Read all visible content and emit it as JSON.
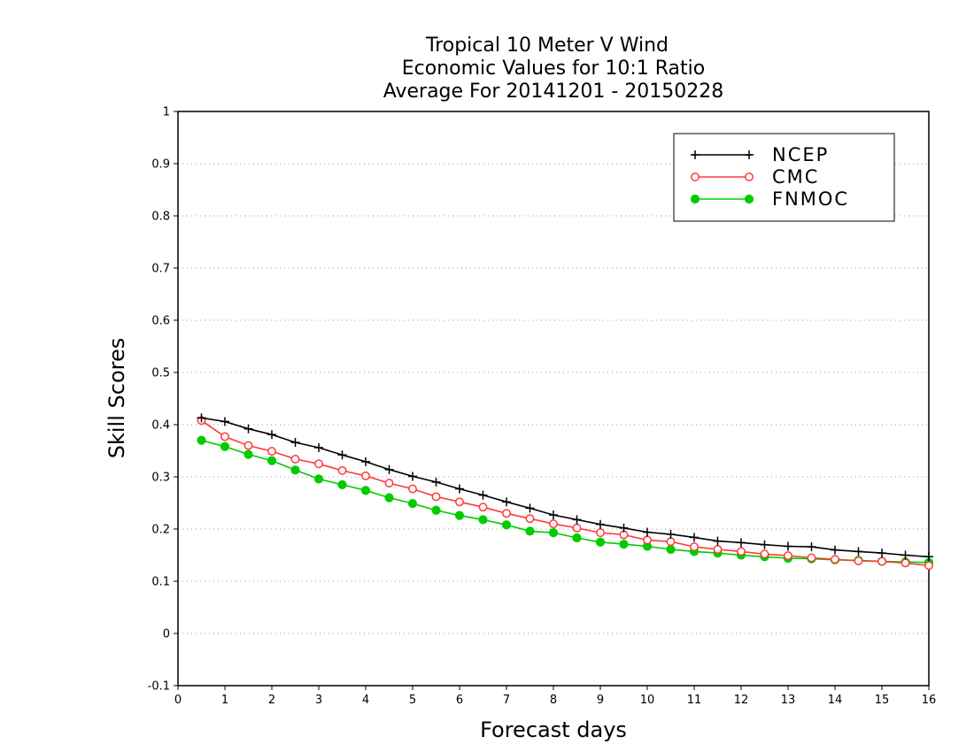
{
  "chart_data": {
    "type": "line",
    "title_lines": [
      "Tropical 10 Meter V Wind",
      "Economic Values for 10:1 Ratio",
      "Average For 20141201 - 20150228"
    ],
    "xlabel": "Forecast days",
    "ylabel": "Skill Scores",
    "xlim": [
      0,
      16
    ],
    "ylim": [
      -0.1,
      1
    ],
    "x_ticks": [
      0,
      1,
      2,
      3,
      4,
      5,
      6,
      7,
      8,
      9,
      10,
      11,
      12,
      13,
      14,
      15,
      16
    ],
    "x_tick_labels": [
      "0",
      "1",
      "2",
      "3",
      "4",
      "5",
      "6",
      "7",
      "8",
      "9",
      "10",
      "11",
      "12",
      "13",
      "14",
      "15",
      "16"
    ],
    "y_ticks": [
      -0.1,
      0,
      0.1,
      0.2,
      0.3,
      0.4,
      0.5,
      0.6,
      0.7,
      0.8,
      0.9,
      1
    ],
    "y_tick_labels": [
      "-0.1",
      "0",
      "0.1",
      "0.2",
      "0.3",
      "0.4",
      "0.5",
      "0.6",
      "0.7",
      "0.8",
      "0.9",
      "1"
    ],
    "grid": "horizontal dotted",
    "legend_position": "top-right",
    "x": [
      0.5,
      1,
      1.5,
      2,
      2.5,
      3,
      3.5,
      4,
      4.5,
      5,
      5.5,
      6,
      6.5,
      7,
      7.5,
      8,
      8.5,
      9,
      9.5,
      10,
      10.5,
      11,
      11.5,
      12,
      12.5,
      13,
      13.5,
      14,
      14.5,
      15,
      15.5,
      16
    ],
    "series": [
      {
        "name": "NCEP",
        "color": "#000000",
        "marker": "plus",
        "values": [
          0.413,
          0.406,
          0.392,
          0.381,
          0.366,
          0.356,
          0.342,
          0.329,
          0.314,
          0.301,
          0.29,
          0.277,
          0.265,
          0.252,
          0.24,
          0.227,
          0.218,
          0.209,
          0.202,
          0.194,
          0.19,
          0.184,
          0.177,
          0.174,
          0.17,
          0.167,
          0.166,
          0.16,
          0.157,
          0.154,
          0.15,
          0.147
        ]
      },
      {
        "name": "CMC",
        "color": "#ff3a3a",
        "marker": "open-circle",
        "values": [
          0.408,
          0.377,
          0.36,
          0.349,
          0.334,
          0.325,
          0.312,
          0.302,
          0.288,
          0.277,
          0.262,
          0.252,
          0.242,
          0.23,
          0.22,
          0.21,
          0.202,
          0.193,
          0.189,
          0.179,
          0.176,
          0.166,
          0.161,
          0.157,
          0.152,
          0.149,
          0.145,
          0.142,
          0.139,
          0.138,
          0.135,
          0.13
        ]
      },
      {
        "name": "FNMOC",
        "color": "#00cc00",
        "marker": "filled-circle",
        "values": [
          0.37,
          0.358,
          0.343,
          0.331,
          0.313,
          0.296,
          0.285,
          0.274,
          0.26,
          0.249,
          0.236,
          0.226,
          0.218,
          0.208,
          0.196,
          0.193,
          0.183,
          0.175,
          0.171,
          0.167,
          0.161,
          0.157,
          0.154,
          0.15,
          0.147,
          0.144,
          0.143,
          0.141,
          0.14,
          0.138,
          0.137,
          0.136
        ]
      }
    ]
  }
}
